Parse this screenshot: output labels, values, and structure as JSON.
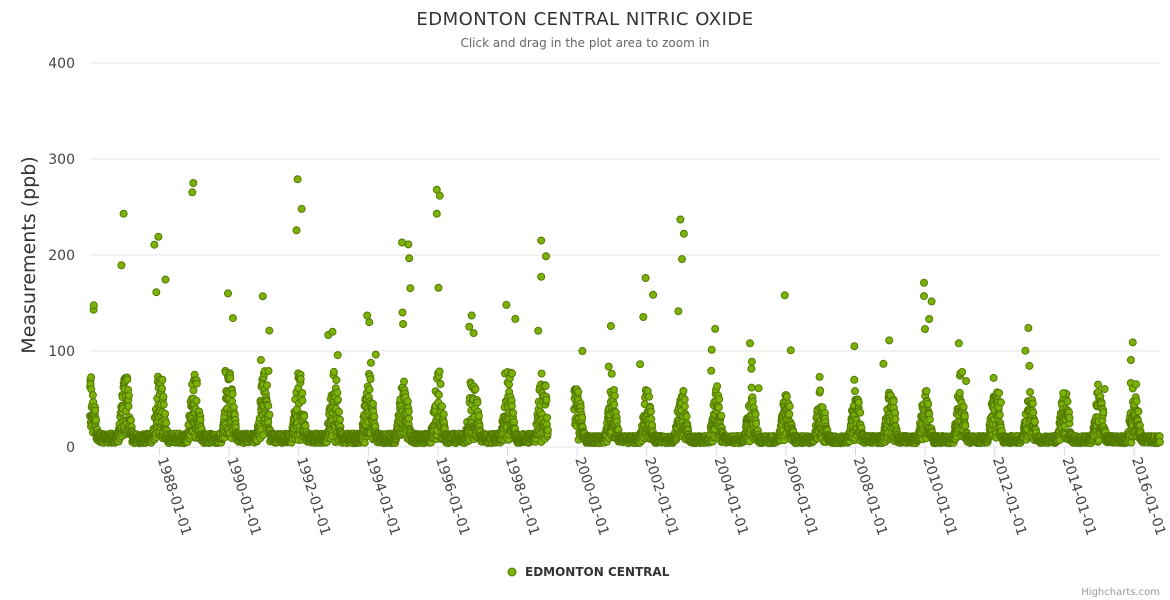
{
  "chart_data": {
    "type": "scatter",
    "title": "EDMONTON CENTRAL NITRIC OXIDE",
    "subtitle": "Click and drag in the plot area to zoom in",
    "ylabel": "Measurements (ppb)",
    "xlabel": "",
    "ylim": [
      0,
      400
    ],
    "yticks": [
      "0",
      "100",
      "200",
      "300",
      "400"
    ],
    "xlim": [
      "1986-01-01",
      "2016-10-01"
    ],
    "xticks": [
      "1988-01-01",
      "1990-01-01",
      "1992-01-01",
      "1994-01-01",
      "1996-01-01",
      "1998-01-01",
      "2000-01-01",
      "2002-01-01",
      "2004-01-01",
      "2006-01-01",
      "2008-01-01",
      "2010-01-01",
      "2012-01-01",
      "2014-01-01",
      "2016-01-01"
    ],
    "legend": {
      "position": "bottom-center"
    },
    "series": [
      {
        "name": "EDMONTON CENTRAL",
        "color": "#7cb10a",
        "border_color": "#527a00",
        "data_gap": [
          "1999-03",
          "1999-12"
        ],
        "seasonal_winter_peaks": [
          {
            "year": 1986,
            "peak": 243
          },
          {
            "year": 1987,
            "peak": 219
          },
          {
            "year": 1988,
            "peak": 275
          },
          {
            "year": 1989,
            "peak": 160
          },
          {
            "year": 1990,
            "peak": 157
          },
          {
            "year": 1991,
            "peak": 279
          },
          {
            "year": 1992,
            "peak": 120
          },
          {
            "year": 1993,
            "peak": 137
          },
          {
            "year": 1994,
            "peak": 213
          },
          {
            "year": 1995,
            "peak": 268
          },
          {
            "year": 1996,
            "peak": 137
          },
          {
            "year": 1997,
            "peak": 148
          },
          {
            "year": 1998,
            "peak": 215
          },
          {
            "year": 2000,
            "peak": 126
          },
          {
            "year": 2001,
            "peak": 176
          },
          {
            "year": 2002,
            "peak": 237
          },
          {
            "year": 2003,
            "peak": 123
          },
          {
            "year": 2004,
            "peak": 108
          },
          {
            "year": 2005,
            "peak": 158
          },
          {
            "year": 2006,
            "peak": 73
          },
          {
            "year": 2007,
            "peak": 105
          },
          {
            "year": 2008,
            "peak": 111
          },
          {
            "year": 2009,
            "peak": 171
          },
          {
            "year": 2010,
            "peak": 108
          },
          {
            "year": 2011,
            "peak": 72
          },
          {
            "year": 2012,
            "peak": 124
          },
          {
            "year": 2013,
            "peak": 56
          },
          {
            "year": 2014,
            "peak": 65
          },
          {
            "year": 2015,
            "peak": 109
          },
          {
            "year": 2016,
            "peak": 27
          }
        ]
      }
    ],
    "credits": "Highcharts.com"
  }
}
